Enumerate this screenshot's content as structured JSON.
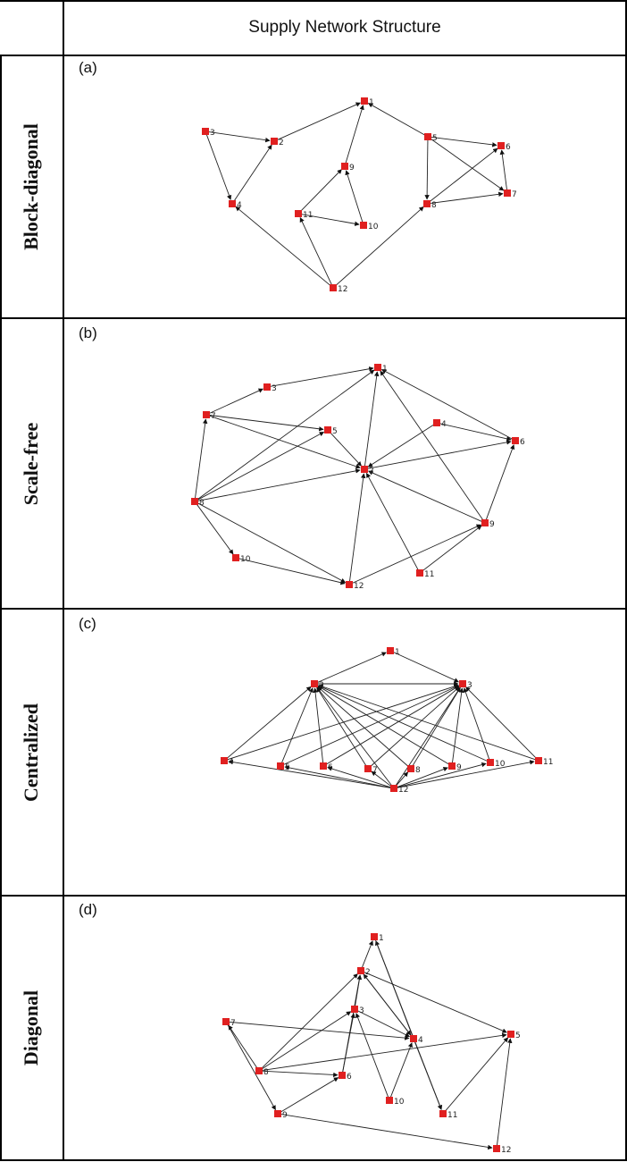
{
  "header": {
    "title": "Supply Network Structure"
  },
  "panels": [
    {
      "letter": "(a)",
      "label": "Block-diagonal",
      "nodes": [
        "1",
        "2",
        "3",
        "4",
        "5",
        "6",
        "7",
        "8",
        "9",
        "10",
        "11",
        "12"
      ],
      "edges": [
        [
          "3",
          "2"
        ],
        [
          "3",
          "4"
        ],
        [
          "4",
          "2"
        ],
        [
          "2",
          "1"
        ],
        [
          "5",
          "1"
        ],
        [
          "5",
          "6"
        ],
        [
          "5",
          "7"
        ],
        [
          "5",
          "8"
        ],
        [
          "8",
          "6"
        ],
        [
          "8",
          "7"
        ],
        [
          "7",
          "6"
        ],
        [
          "11",
          "9"
        ],
        [
          "11",
          "10"
        ],
        [
          "10",
          "9"
        ],
        [
          "9",
          "1"
        ],
        [
          "12",
          "4"
        ],
        [
          "12",
          "11"
        ],
        [
          "12",
          "8"
        ]
      ]
    },
    {
      "letter": "(b)",
      "label": "Scale-free",
      "nodes": [
        "1",
        "2",
        "3",
        "4",
        "5",
        "6",
        "7",
        "8",
        "9",
        "10",
        "11",
        "12"
      ],
      "edges": [
        [
          "7",
          "3"
        ],
        [
          "3",
          "1"
        ],
        [
          "7",
          "5"
        ],
        [
          "7",
          "2"
        ],
        [
          "8",
          "7"
        ],
        [
          "8",
          "1"
        ],
        [
          "8",
          "5"
        ],
        [
          "8",
          "2"
        ],
        [
          "8",
          "10"
        ],
        [
          "8",
          "12"
        ],
        [
          "5",
          "2"
        ],
        [
          "2",
          "1"
        ],
        [
          "2",
          "6"
        ],
        [
          "4",
          "6"
        ],
        [
          "4",
          "2"
        ],
        [
          "6",
          "1"
        ],
        [
          "9",
          "6"
        ],
        [
          "9",
          "1"
        ],
        [
          "9",
          "2"
        ],
        [
          "11",
          "2"
        ],
        [
          "11",
          "9"
        ],
        [
          "12",
          "2"
        ],
        [
          "12",
          "9"
        ],
        [
          "10",
          "12"
        ]
      ]
    },
    {
      "letter": "(c)",
      "label": "Centralized",
      "nodes": [
        "1",
        "2",
        "3",
        "4",
        "5",
        "6",
        "7",
        "8",
        "9",
        "10",
        "11",
        "12"
      ],
      "edges": [
        [
          "2",
          "1"
        ],
        [
          "1",
          "3"
        ],
        [
          "2",
          "3"
        ],
        [
          "4",
          "2"
        ],
        [
          "4",
          "3"
        ],
        [
          "5",
          "2"
        ],
        [
          "5",
          "3"
        ],
        [
          "6",
          "2"
        ],
        [
          "6",
          "3"
        ],
        [
          "7",
          "2"
        ],
        [
          "7",
          "3"
        ],
        [
          "8",
          "2"
        ],
        [
          "8",
          "3"
        ],
        [
          "9",
          "2"
        ],
        [
          "9",
          "3"
        ],
        [
          "10",
          "2"
        ],
        [
          "10",
          "3"
        ],
        [
          "11",
          "2"
        ],
        [
          "11",
          "3"
        ],
        [
          "12",
          "2"
        ],
        [
          "12",
          "3"
        ],
        [
          "12",
          "4"
        ],
        [
          "12",
          "5"
        ],
        [
          "12",
          "6"
        ],
        [
          "12",
          "7"
        ],
        [
          "12",
          "8"
        ],
        [
          "12",
          "9"
        ],
        [
          "12",
          "10"
        ],
        [
          "12",
          "11"
        ]
      ]
    },
    {
      "letter": "(d)",
      "label": "Diagonal",
      "nodes": [
        "1",
        "2",
        "3",
        "4",
        "5",
        "6",
        "7",
        "8",
        "9",
        "10",
        "11",
        "12"
      ],
      "edges": [
        [
          "2",
          "1"
        ],
        [
          "4",
          "1"
        ],
        [
          "8",
          "2"
        ],
        [
          "6",
          "2"
        ],
        [
          "3",
          "2"
        ],
        [
          "4",
          "2"
        ],
        [
          "2",
          "5"
        ],
        [
          "8",
          "3"
        ],
        [
          "6",
          "3"
        ],
        [
          "3",
          "4"
        ],
        [
          "8",
          "6"
        ],
        [
          "10",
          "3"
        ],
        [
          "8",
          "5"
        ],
        [
          "7",
          "4"
        ],
        [
          "8",
          "7"
        ],
        [
          "7",
          "9"
        ],
        [
          "9",
          "6"
        ],
        [
          "9",
          "12"
        ],
        [
          "4",
          "11"
        ],
        [
          "11",
          "5"
        ],
        [
          "12",
          "5"
        ],
        [
          "1",
          "11"
        ],
        [
          "10",
          "4"
        ],
        [
          "2",
          "4"
        ]
      ]
    }
  ]
}
